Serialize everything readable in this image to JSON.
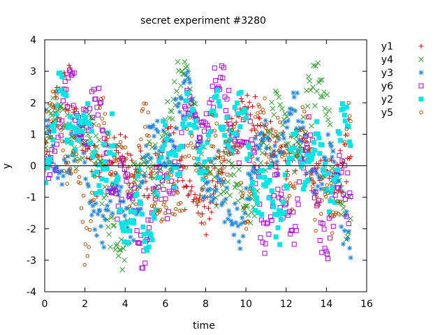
{
  "chart_data": {
    "type": "scatter",
    "title": "secret experiment #3280",
    "xlabel": "time",
    "ylabel": "y",
    "xlim": [
      0,
      16
    ],
    "ylim": [
      -4,
      4
    ],
    "xticks": [
      0,
      2,
      4,
      6,
      8,
      10,
      12,
      14,
      16
    ],
    "yticks": [
      -4,
      -3,
      -2,
      -1,
      0,
      1,
      2,
      3,
      4
    ],
    "zero_line": true,
    "grid": false,
    "legend": "outside-right",
    "points_per_series": 300,
    "x_range_points": [
      0.0,
      15.2
    ],
    "series": [
      {
        "name": "y1",
        "marker": "plus",
        "color": "#d40000",
        "approx_values": {
          "t": [
            0,
            1,
            2,
            3,
            4,
            5,
            6,
            7,
            8,
            9,
            10,
            11,
            12,
            13,
            14,
            15
          ],
          "y": [
            0.8,
            1.6,
            1.4,
            0.2,
            -0.8,
            0.3,
            1.0,
            -1.6,
            -0.6,
            0.5,
            1.2,
            1.6,
            0.4,
            -1.0,
            0.6,
            0.1
          ]
        }
      },
      {
        "name": "y4",
        "marker": "cross",
        "color": "#2ca02c",
        "approx_values": {
          "t": [
            0,
            1,
            2,
            3,
            4,
            5,
            6,
            7,
            8,
            9,
            10,
            11,
            12,
            13,
            14,
            15
          ],
          "y": [
            0.2,
            2.0,
            1.0,
            -1.0,
            -2.0,
            -0.5,
            1.6,
            2.0,
            0.8,
            -1.2,
            -0.6,
            0.4,
            1.2,
            2.0,
            1.4,
            -1.0
          ]
        }
      },
      {
        "name": "y3",
        "marker": "star",
        "color": "#1e88e5",
        "approx_values": {
          "t": [
            0,
            1,
            2,
            3,
            4,
            5,
            6,
            7,
            8,
            9,
            10,
            11,
            12,
            13,
            14,
            15
          ],
          "y": [
            1.0,
            0.6,
            -0.2,
            -1.8,
            -1.4,
            -0.4,
            1.0,
            1.8,
            0.2,
            -1.8,
            -0.8,
            0.6,
            1.4,
            0.8,
            -0.4,
            -1.4
          ]
        }
      },
      {
        "name": "y6",
        "marker": "open-square",
        "color": "#b000d8",
        "approx_values": {
          "t": [
            0,
            1,
            2,
            3,
            4,
            5,
            6,
            7,
            8,
            9,
            10,
            11,
            12,
            13,
            14,
            15
          ],
          "y": [
            0.4,
            1.8,
            2.2,
            0.8,
            -1.2,
            -2.0,
            -0.6,
            1.0,
            2.0,
            2.2,
            0.6,
            -1.2,
            -1.6,
            0.2,
            -1.8,
            -0.6
          ]
        }
      },
      {
        "name": "y2",
        "marker": "filled-square",
        "color": "#00e5e5",
        "approx_values": {
          "t": [
            0,
            1,
            2,
            3,
            4,
            5,
            6,
            7,
            8,
            9,
            10,
            11,
            12,
            13,
            14,
            15
          ],
          "y": [
            0.6,
            1.8,
            0.8,
            0.2,
            -1.4,
            -2.2,
            0.2,
            1.4,
            0.6,
            1.6,
            0.8,
            -1.6,
            -0.6,
            0.6,
            -0.2,
            0.8
          ]
        }
      },
      {
        "name": "y5",
        "marker": "open-circle",
        "color": "#b84a00",
        "approx_values": {
          "t": [
            0,
            1,
            2,
            3,
            4,
            5,
            6,
            7,
            8,
            9,
            10,
            11,
            12,
            13,
            14,
            15
          ],
          "y": [
            1.2,
            1.0,
            -1.8,
            1.4,
            -0.6,
            0.8,
            -1.6,
            0.2,
            -0.4,
            1.0,
            -0.8,
            1.8,
            -0.2,
            0.6,
            -1.6,
            0.4
          ]
        }
      }
    ]
  }
}
